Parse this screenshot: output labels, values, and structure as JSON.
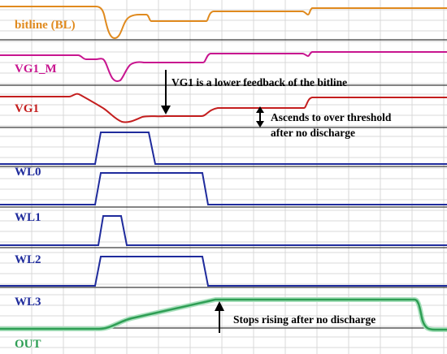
{
  "colors": {
    "background": "#ffffff",
    "grid": "#d9d9d9",
    "separator": "#3a3a3a",
    "bitline": "#e08a1e",
    "vg1_m": "#c8158f",
    "vg1": "#c41e1e",
    "wordline": "#1f2b9c",
    "out": "#2e9e54",
    "out_glow": "#a9e0bd",
    "annotation": "#000000"
  },
  "traces": {
    "bitline": "bitline (BL)",
    "vg1_m": "VG1_M",
    "vg1": "VG1",
    "wl0": "WL0",
    "wl1": "WL1",
    "wl2": "WL2",
    "wl3": "WL3",
    "out": "OUT"
  },
  "annotations": {
    "vg1_feedback": "VG1 is a lower feedback of the bitline",
    "ascends_line1": "Ascends to over threshold",
    "ascends_line2": "after no discharge",
    "stops_rising": "Stops rising after no discharge"
  },
  "arrows": {
    "vg1_feedback": "down-arrow",
    "ascends": "double-headed-arrow",
    "stops_rising": "up-arrow"
  }
}
